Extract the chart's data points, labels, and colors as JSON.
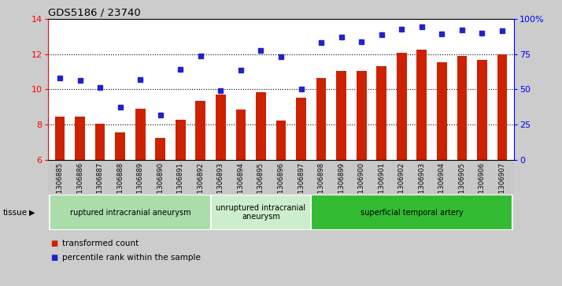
{
  "title": "GDS5186 / 23740",
  "samples": [
    "GSM1306885",
    "GSM1306886",
    "GSM1306887",
    "GSM1306888",
    "GSM1306889",
    "GSM1306890",
    "GSM1306891",
    "GSM1306892",
    "GSM1306893",
    "GSM1306894",
    "GSM1306895",
    "GSM1306896",
    "GSM1306897",
    "GSM1306898",
    "GSM1306899",
    "GSM1306900",
    "GSM1306901",
    "GSM1306902",
    "GSM1306903",
    "GSM1306904",
    "GSM1306905",
    "GSM1306906",
    "GSM1306907"
  ],
  "bar_values": [
    8.45,
    8.45,
    8.05,
    7.55,
    8.9,
    7.25,
    8.3,
    9.35,
    9.7,
    8.85,
    9.85,
    8.25,
    9.55,
    10.65,
    11.05,
    11.05,
    11.3,
    12.05,
    12.25,
    11.55,
    11.9,
    11.65,
    12.0
  ],
  "dot_values": [
    10.65,
    10.5,
    10.1,
    9.0,
    10.55,
    8.55,
    11.15,
    11.9,
    9.95,
    11.1,
    12.2,
    11.85,
    10.0,
    12.65,
    12.95,
    12.7,
    13.1,
    13.4,
    13.55,
    13.15,
    13.35,
    13.2,
    13.3
  ],
  "ylim": [
    6,
    14
  ],
  "bar_color": "#cc2200",
  "dot_color": "#2222cc",
  "fig_bg": "#cccccc",
  "plot_bg": "#ffffff",
  "tick_area_bg": "#d0d0d0",
  "groups": [
    {
      "label": "ruptured intracranial aneurysm",
      "start": 0,
      "end": 8,
      "color": "#aaddaa"
    },
    {
      "label": "unruptured intracranial\naneurysm",
      "start": 8,
      "end": 13,
      "color": "#cceecc"
    },
    {
      "label": "superficial temporal artery",
      "start": 13,
      "end": 23,
      "color": "#33bb33"
    }
  ],
  "legend_bar_label": "transformed count",
  "legend_dot_label": "percentile rank within the sample"
}
